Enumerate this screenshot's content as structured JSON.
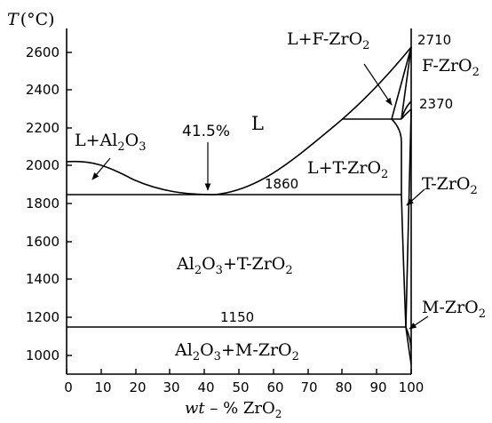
{
  "axes": {
    "y_label_T": "T",
    "y_unit": "(°C)",
    "x_label_wt": "wt",
    "x_label_rest": " – % ZrO",
    "x_label_sub": "2",
    "x_ticks": [
      "0",
      "10",
      "20",
      "30",
      "40",
      "50",
      "60",
      "70",
      "80",
      "90",
      "100"
    ],
    "y_ticks": [
      "1000",
      "1200",
      "1400",
      "1600",
      "1800",
      "2000",
      "2200",
      "2400",
      "2600"
    ]
  },
  "labels": {
    "liquid": "L",
    "l_al2o3": {
      "a": "L+Al",
      "s1": "2",
      "b": "O",
      "s2": "3"
    },
    "l_f": {
      "a": "L+F-ZrO",
      "s": "2"
    },
    "f_zro2": {
      "a": "F-ZrO",
      "s": "2"
    },
    "l_t": {
      "a": "L+T-ZrO",
      "s": "2"
    },
    "t_zro2": {
      "a": "T-ZrO",
      "s": "2"
    },
    "al2o3_t": {
      "a": "Al",
      "s1": "2",
      "b": "O",
      "s2": "3",
      "c": "+T-ZrO",
      "s3": "2"
    },
    "al2o3_m": {
      "a": "Al",
      "s1": "2",
      "b": "O",
      "s2": "3",
      "c": "+M-ZrO",
      "s3": "2"
    },
    "m_zro2": {
      "a": "M-ZrO",
      "s": "2"
    },
    "eutectic_pct": "41.5%",
    "t_eutectic": "1860",
    "t_eutectoid": "1150",
    "t_melt": "2710",
    "t_peritectic": "2370"
  },
  "colors": {
    "line": "#000000",
    "background": "#ffffff"
  }
}
